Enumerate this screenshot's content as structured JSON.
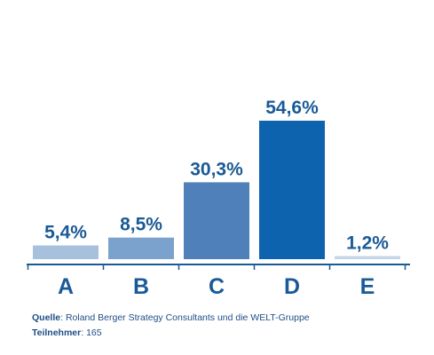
{
  "chart_data": {
    "type": "bar",
    "categories": [
      "A",
      "B",
      "C",
      "D",
      "E"
    ],
    "values": [
      5.4,
      8.5,
      30.3,
      54.6,
      1.2
    ],
    "value_labels": [
      "5,4%",
      "8,5%",
      "30,3%",
      "54,6%",
      "1,2%"
    ],
    "colors": [
      "#a7c1dc",
      "#7ba2cc",
      "#4f80b9",
      "#0d63ad",
      "#c3d6e9"
    ],
    "ylim": [
      0,
      54.6
    ],
    "grid": false,
    "legend": "none"
  },
  "footer": {
    "source_label": "Quelle",
    "source_text": ": Roland Berger Strategy Consultants und die WELT-Gruppe",
    "participants_label": "Teilnehmer",
    "participants_text": ": 165"
  },
  "colors": {
    "axis": "#1a5a96",
    "text": "#1a5a96"
  }
}
